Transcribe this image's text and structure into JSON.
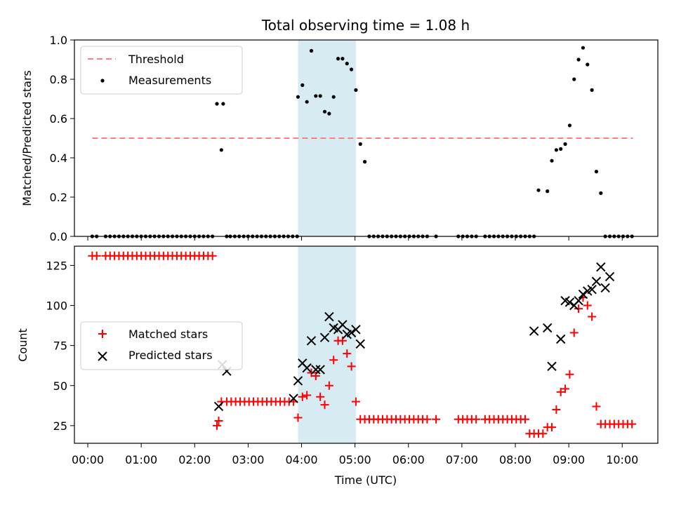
{
  "figure": {
    "title": "Total observing time = 1.08 h"
  },
  "chart_data": [
    {
      "type": "scatter",
      "ylabel": "Matched/Predicted stars",
      "xlabel": "",
      "xlim": [
        "-00:15",
        "10:40"
      ],
      "ylim": [
        0,
        1.0
      ],
      "yticks": [
        0.0,
        0.2,
        0.4,
        0.6,
        0.8,
        1.0
      ],
      "ytick_labels": [
        "0.0",
        "0.2",
        "0.4",
        "0.6",
        "0.8",
        "1.0"
      ],
      "highlight_span": [
        "03:56",
        "05:01"
      ],
      "legend": [
        "Threshold",
        "Measurements"
      ],
      "legend_placement": "top-left",
      "threshold": {
        "name": "Threshold",
        "value": 0.5,
        "x": [
          "00:05",
          "10:12"
        ],
        "color": "#ff7f7f"
      },
      "series": [
        {
          "name": "Measurements",
          "color": "#000000",
          "x": [
            "00:05",
            "00:10",
            "00:20",
            "00:25",
            "00:30",
            "00:35",
            "00:40",
            "00:45",
            "00:50",
            "00:55",
            "01:00",
            "01:05",
            "01:10",
            "01:15",
            "01:20",
            "01:25",
            "01:30",
            "01:35",
            "01:40",
            "01:45",
            "01:50",
            "01:55",
            "02:00",
            "02:05",
            "02:10",
            "02:15",
            "02:20",
            "02:25",
            "02:30",
            "02:32",
            "02:36",
            "02:40",
            "02:45",
            "02:50",
            "02:55",
            "03:00",
            "03:05",
            "03:10",
            "03:15",
            "03:20",
            "03:25",
            "03:30",
            "03:35",
            "03:40",
            "03:45",
            "03:50",
            "03:55",
            "03:56",
            "04:01",
            "04:06",
            "04:11",
            "04:16",
            "04:21",
            "04:26",
            "04:31",
            "04:36",
            "04:41",
            "04:46",
            "04:51",
            "04:56",
            "05:01",
            "05:06",
            "05:11",
            "05:16",
            "05:21",
            "05:26",
            "05:31",
            "05:36",
            "05:41",
            "05:46",
            "05:51",
            "05:56",
            "06:01",
            "06:06",
            "06:11",
            "06:16",
            "06:21",
            "06:31",
            "06:56",
            "07:01",
            "07:06",
            "07:11",
            "07:16",
            "07:26",
            "07:31",
            "07:36",
            "07:41",
            "07:46",
            "07:51",
            "07:56",
            "08:01",
            "08:06",
            "08:11",
            "08:16",
            "08:21",
            "08:26",
            "08:36",
            "08:41",
            "08:46",
            "08:51",
            "08:56",
            "09:01",
            "09:06",
            "09:11",
            "09:16",
            "09:21",
            "09:26",
            "09:31",
            "09:36",
            "09:41",
            "09:46",
            "09:51",
            "09:56",
            "10:01",
            "10:06",
            "10:11"
          ],
          "y": [
            0,
            0,
            0,
            0,
            0,
            0,
            0,
            0,
            0,
            0,
            0,
            0,
            0,
            0,
            0,
            0,
            0,
            0,
            0,
            0,
            0,
            0,
            0,
            0,
            0,
            0,
            0,
            0.675,
            0.44,
            0.675,
            0,
            0,
            0,
            0,
            0,
            0,
            0,
            0,
            0,
            0,
            0,
            0,
            0,
            0,
            0,
            0,
            0,
            0.71,
            0.77,
            0.685,
            0.945,
            0.715,
            0.715,
            0.635,
            0.625,
            0.71,
            0.905,
            0.905,
            0.88,
            0.85,
            0.745,
            0.47,
            0.38,
            0,
            0,
            0,
            0,
            0,
            0,
            0,
            0,
            0,
            0,
            0,
            0,
            0,
            0,
            0,
            0,
            0,
            0,
            0,
            0,
            0,
            0,
            0,
            0,
            0,
            0,
            0,
            0,
            0,
            0,
            0,
            0,
            0.235,
            0.23,
            0.385,
            0.44,
            0.445,
            0.47,
            0.565,
            0.8,
            0.9,
            0.96,
            0.875,
            0.745,
            0.33,
            0.22,
            0,
            0,
            0,
            0,
            0,
            0,
            0
          ]
        }
      ]
    },
    {
      "type": "scatter",
      "xlabel": "Time (UTC)",
      "ylabel": "Count",
      "xlim": [
        "-00:15",
        "10:40"
      ],
      "ylim": [
        14,
        137
      ],
      "yticks": [
        25,
        50,
        75,
        100,
        125
      ],
      "ytick_labels": [
        "25",
        "50",
        "75",
        "100",
        "125"
      ],
      "xticks": [
        "00:00",
        "01:00",
        "02:00",
        "03:00",
        "04:00",
        "05:00",
        "06:00",
        "07:00",
        "08:00",
        "09:00",
        "10:00"
      ],
      "xtick_labels": [
        "00:00",
        "01:00",
        "02:00",
        "03:00",
        "04:00",
        "05:00",
        "06:00",
        "07:00",
        "08:00",
        "09:00",
        "10:00"
      ],
      "highlight_span": [
        "03:56",
        "05:01"
      ],
      "legend": [
        "Matched stars",
        "Predicted stars"
      ],
      "legend_placement": "center-left",
      "series": [
        {
          "name": "Matched stars",
          "marker": "plus",
          "color": "#ff0000",
          "x": [
            "00:05",
            "00:10",
            "00:20",
            "00:25",
            "00:30",
            "00:35",
            "00:40",
            "00:45",
            "00:50",
            "00:55",
            "01:00",
            "01:05",
            "01:10",
            "01:15",
            "01:20",
            "01:25",
            "01:30",
            "01:35",
            "01:40",
            "01:45",
            "01:50",
            "01:55",
            "02:00",
            "02:05",
            "02:10",
            "02:15",
            "02:20",
            "02:25",
            "02:27",
            "02:30",
            "02:36",
            "02:41",
            "02:46",
            "02:51",
            "02:56",
            "03:01",
            "03:06",
            "03:11",
            "03:16",
            "03:21",
            "03:26",
            "03:31",
            "03:36",
            "03:41",
            "03:46",
            "03:51",
            "03:56",
            "04:01",
            "04:06",
            "04:11",
            "04:16",
            "04:21",
            "04:26",
            "04:31",
            "04:36",
            "04:41",
            "04:46",
            "04:51",
            "04:56",
            "05:01",
            "05:06",
            "05:11",
            "05:16",
            "05:21",
            "05:26",
            "05:31",
            "05:36",
            "05:41",
            "05:46",
            "05:51",
            "05:56",
            "06:01",
            "06:06",
            "06:11",
            "06:16",
            "06:21",
            "06:31",
            "06:56",
            "07:01",
            "07:06",
            "07:11",
            "07:16",
            "07:26",
            "07:31",
            "07:36",
            "07:41",
            "07:46",
            "07:51",
            "07:56",
            "08:01",
            "08:06",
            "08:11",
            "08:16",
            "08:21",
            "08:26",
            "08:31",
            "08:36",
            "08:41",
            "08:46",
            "08:51",
            "08:56",
            "09:01",
            "09:06",
            "09:11",
            "09:16",
            "09:21",
            "09:26",
            "09:31",
            "09:36",
            "09:41",
            "09:46",
            "09:51",
            "09:56",
            "10:01",
            "10:06",
            "10:11"
          ],
          "y": [
            131,
            131,
            131,
            131,
            131,
            131,
            131,
            131,
            131,
            131,
            131,
            131,
            131,
            131,
            131,
            131,
            131,
            131,
            131,
            131,
            131,
            131,
            131,
            131,
            131,
            131,
            131,
            25,
            28,
            40,
            40,
            40,
            40,
            40,
            40,
            40,
            40,
            40,
            40,
            40,
            40,
            40,
            40,
            40,
            40,
            40,
            30,
            43,
            44,
            58,
            56,
            43,
            38,
            50,
            66,
            78,
            78,
            70,
            62,
            40,
            29,
            29,
            29,
            29,
            29,
            29,
            29,
            29,
            29,
            29,
            29,
            29,
            29,
            29,
            29,
            29,
            29,
            29,
            29,
            29,
            29,
            29,
            29,
            29,
            29,
            29,
            29,
            29,
            29,
            29,
            29,
            29,
            20,
            20,
            20,
            20,
            24,
            24,
            35,
            46,
            48,
            57,
            83,
            98,
            105,
            100,
            93,
            37,
            26,
            26,
            26,
            26,
            26,
            26,
            26,
            26
          ]
        },
        {
          "name": "Predicted stars",
          "marker": "x",
          "color": "#000000",
          "x": [
            "02:27",
            "02:31",
            "02:36",
            "03:51",
            "03:56",
            "04:01",
            "04:06",
            "04:11",
            "04:16",
            "04:21",
            "04:26",
            "04:31",
            "04:36",
            "04:41",
            "04:46",
            "04:51",
            "04:56",
            "05:01",
            "05:06",
            "08:21",
            "08:36",
            "08:41",
            "08:51",
            "08:56",
            "09:01",
            "09:06",
            "09:11",
            "09:16",
            "09:21",
            "09:26",
            "09:31",
            "09:36",
            "09:41",
            "09:46"
          ],
          "y": [
            37,
            63,
            59,
            42,
            53,
            64,
            61,
            78,
            60,
            60,
            80,
            93,
            86,
            85,
            88,
            82,
            83,
            85,
            76,
            84,
            86,
            62,
            79,
            103,
            102,
            100,
            103,
            107,
            109,
            110,
            115,
            124,
            111,
            118
          ]
        }
      ]
    }
  ]
}
